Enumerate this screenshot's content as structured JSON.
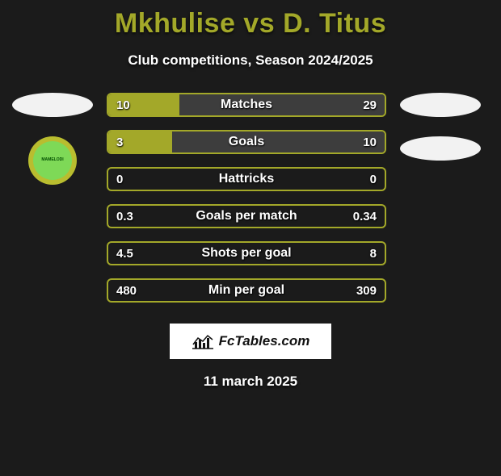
{
  "title": "Mkhulise vs D. Titus",
  "subtitle": "Club competitions, Season 2024/2025",
  "date": "11 march 2025",
  "footer_brand": "FcTables.com",
  "colors": {
    "accent": "#a3a829",
    "background": "#1b1b1b",
    "border_alt": "#4a4a4a",
    "text": "#ffffff",
    "logo_bg": "#f2f2f2"
  },
  "left_club_logo": {
    "outer_color": "#b9bd2f",
    "inner_color": "#7ed957",
    "text": "MAMELODI"
  },
  "stats": [
    {
      "label": "Matches",
      "left_value": "10",
      "right_value": "29",
      "left_pct": 25.6,
      "right_pct": 74.4,
      "left_color": "#a3a829",
      "right_color": "#3d3d3d",
      "border_color": "#a3a829"
    },
    {
      "label": "Goals",
      "left_value": "3",
      "right_value": "10",
      "left_pct": 23.1,
      "right_pct": 76.9,
      "left_color": "#a3a829",
      "right_color": "#3d3d3d",
      "border_color": "#a3a829"
    },
    {
      "label": "Hattricks",
      "left_value": "0",
      "right_value": "0",
      "left_pct": 0,
      "right_pct": 0,
      "left_color": "#a3a829",
      "right_color": "#3d3d3d",
      "border_color": "#a3a829"
    },
    {
      "label": "Goals per match",
      "left_value": "0.3",
      "right_value": "0.34",
      "left_pct": 0,
      "right_pct": 0,
      "left_color": "#a3a829",
      "right_color": "#3d3d3d",
      "border_color": "#a3a829"
    },
    {
      "label": "Shots per goal",
      "left_value": "4.5",
      "right_value": "8",
      "left_pct": 0,
      "right_pct": 0,
      "left_color": "#a3a829",
      "right_color": "#3d3d3d",
      "border_color": "#a3a829"
    },
    {
      "label": "Min per goal",
      "left_value": "480",
      "right_value": "309",
      "left_pct": 0,
      "right_pct": 0,
      "left_color": "#a3a829",
      "right_color": "#3d3d3d",
      "border_color": "#a3a829"
    }
  ]
}
